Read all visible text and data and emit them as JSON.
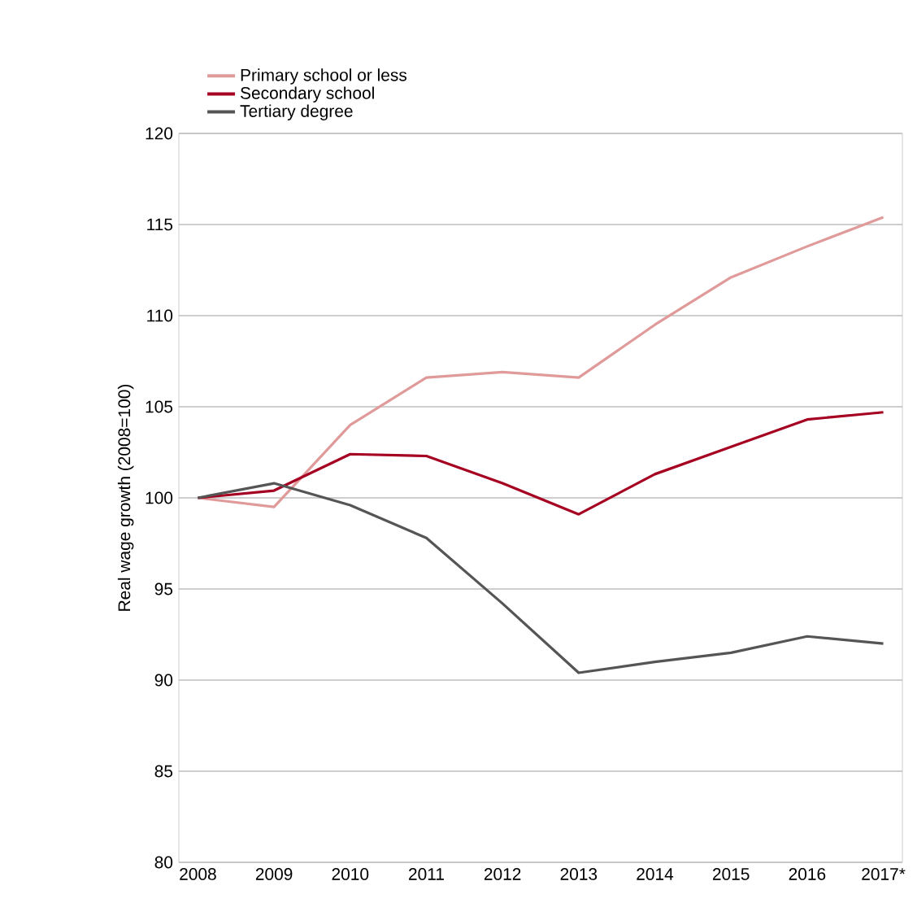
{
  "chart_data": {
    "type": "line",
    "ylabel": "Real wage growth (2008=100)",
    "categories": [
      "2008",
      "2009",
      "2010",
      "2011",
      "2012",
      "2013",
      "2014",
      "2015",
      "2016",
      "2017*"
    ],
    "series": [
      {
        "name": "Primary school or less",
        "color": "#e09a9a",
        "values": [
          100,
          99.5,
          104,
          106.6,
          106.9,
          106.6,
          109.5,
          112.1,
          113.8,
          115.4
        ]
      },
      {
        "name": "Secondary school",
        "color": "#a50021",
        "values": [
          100,
          100.4,
          102.4,
          102.3,
          100.8,
          99.1,
          101.3,
          102.8,
          104.3,
          104.7
        ]
      },
      {
        "name": "Tertiary degree",
        "color": "#555555",
        "values": [
          100,
          100.8,
          99.6,
          97.8,
          94.2,
          90.4,
          91.0,
          91.5,
          92.4,
          92.0
        ]
      }
    ],
    "ylim": [
      80,
      120
    ],
    "yticks": [
      80,
      85,
      90,
      95,
      100,
      105,
      110,
      115,
      120
    ],
    "grid": "y",
    "legend": "top left",
    "marker": "none",
    "line_style": "solid"
  }
}
